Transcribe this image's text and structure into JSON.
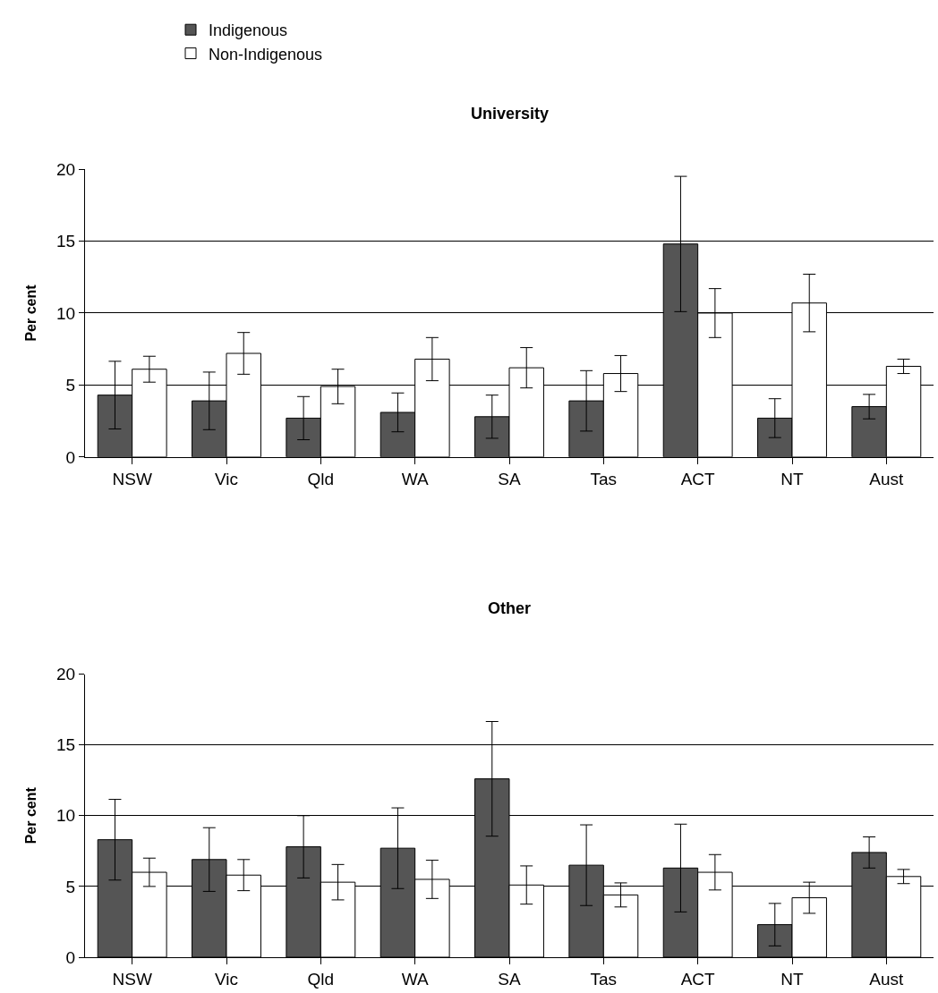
{
  "chart_data": [
    {
      "type": "bar",
      "title": "University",
      "ylabel": "Per cent",
      "categories": [
        "NSW",
        "Vic",
        "Qld",
        "WA",
        "SA",
        "Tas",
        "ACT",
        "NT",
        "Aust"
      ],
      "ylim": [
        0,
        20
      ],
      "yticks": [
        0,
        5,
        10,
        15,
        20
      ],
      "grid": "y",
      "legend": "top",
      "series": [
        {
          "name": "Indigenous",
          "color": "#555555",
          "values": [
            4.3,
            3.9,
            2.7,
            3.1,
            2.8,
            3.9,
            14.8,
            2.7,
            3.5
          ],
          "errors": [
            2.35,
            2.0,
            1.5,
            1.35,
            1.5,
            2.1,
            4.7,
            1.35,
            0.85
          ]
        },
        {
          "name": "Non-Indigenous",
          "color": "#ffffff",
          "values": [
            6.1,
            7.2,
            4.9,
            6.8,
            6.2,
            5.8,
            10.0,
            10.7,
            6.3
          ],
          "errors": [
            0.9,
            1.45,
            1.2,
            1.5,
            1.4,
            1.25,
            1.7,
            2.0,
            0.5
          ]
        }
      ]
    },
    {
      "type": "bar",
      "title": "Other",
      "ylabel": "Per cent",
      "categories": [
        "NSW",
        "Vic",
        "Qld",
        "WA",
        "SA",
        "Tas",
        "ACT",
        "NT",
        "Aust"
      ],
      "ylim": [
        0,
        20
      ],
      "yticks": [
        0,
        5,
        10,
        15,
        20
      ],
      "grid": "y",
      "series": [
        {
          "color": "#555555",
          "values": [
            8.3,
            6.9,
            7.8,
            7.7,
            12.6,
            6.5,
            6.3,
            2.3,
            7.4
          ],
          "errors": [
            2.85,
            2.25,
            2.2,
            2.85,
            4.05,
            2.85,
            3.1,
            1.5,
            1.1
          ]
        },
        {
          "color": "#ffffff",
          "values": [
            6.0,
            5.8,
            5.3,
            5.5,
            5.1,
            4.4,
            6.0,
            4.2,
            5.7
          ],
          "errors": [
            1.0,
            1.1,
            1.25,
            1.35,
            1.35,
            0.85,
            1.25,
            1.1,
            0.5
          ]
        }
      ]
    }
  ]
}
